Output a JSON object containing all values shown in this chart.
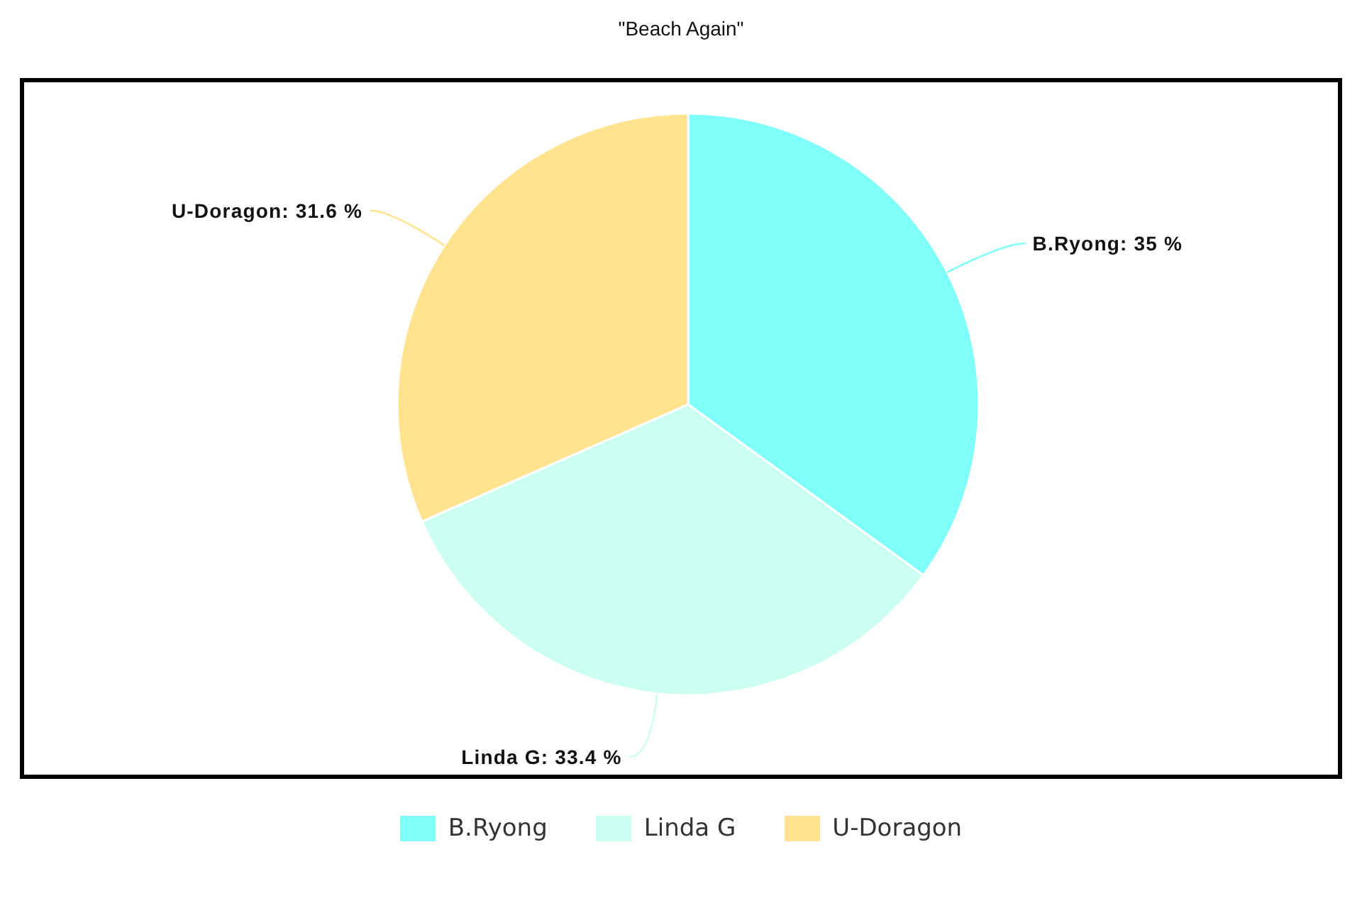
{
  "chart_data": {
    "type": "pie",
    "title": "\"Beach Again\"",
    "categories": [
      "B.Ryong",
      "Linda G",
      "U-Doragon"
    ],
    "values": [
      35,
      33.4,
      31.6
    ],
    "colors": [
      "#7ffffa",
      "#ccfff2",
      "#ffe38f"
    ],
    "value_labels": [
      "B.Ryong: 35 %",
      "Linda G: 33.4 %",
      "U-Doragon: 31.6 %"
    ],
    "legend": "bottom"
  }
}
